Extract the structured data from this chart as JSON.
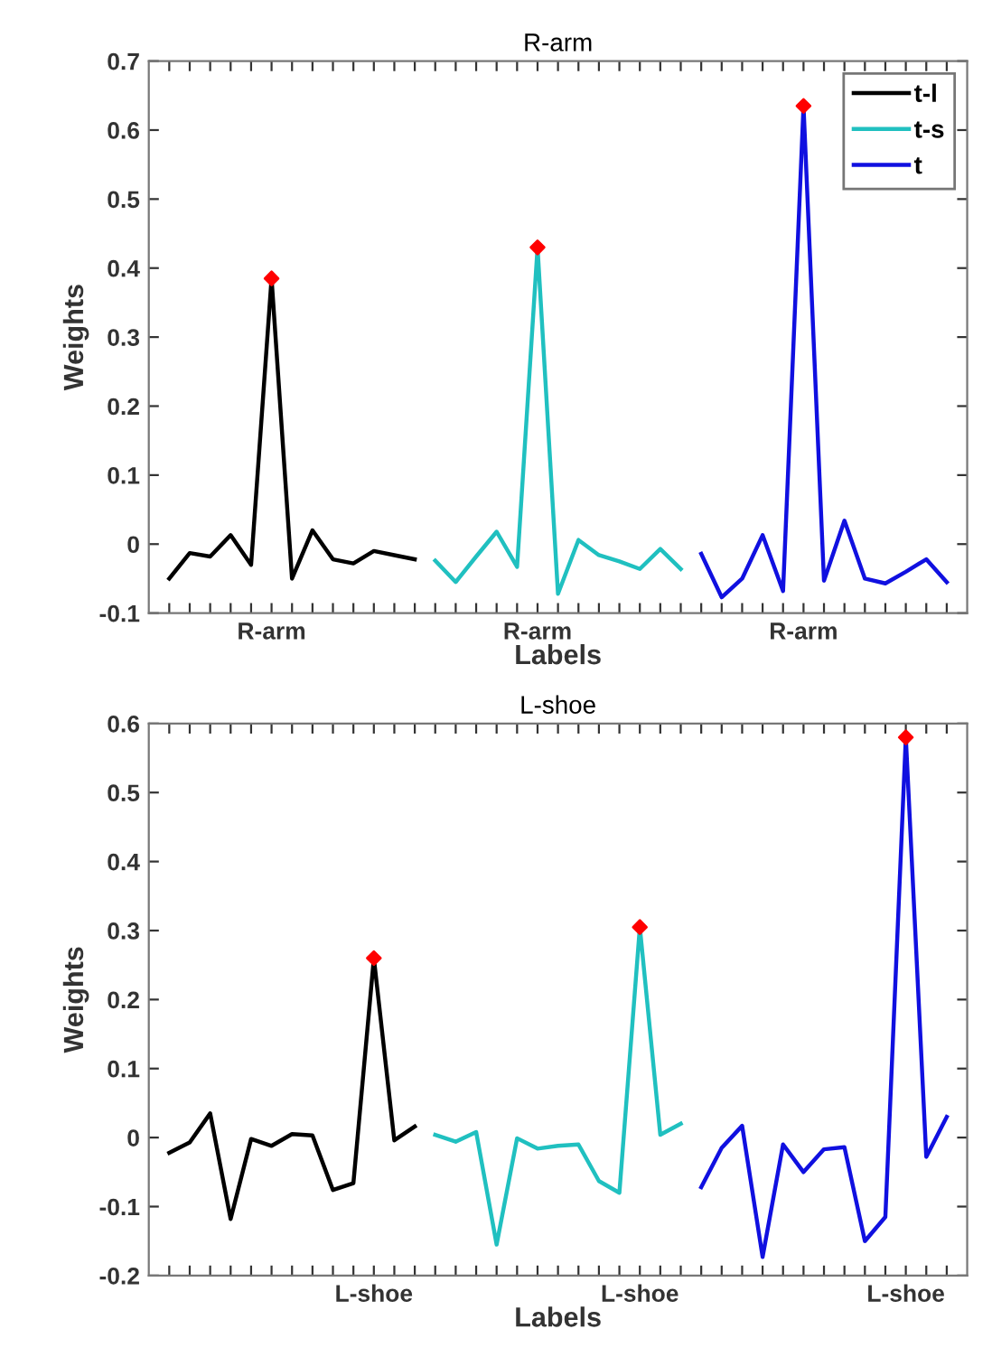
{
  "chart_data": [
    {
      "type": "line",
      "title": "R-arm",
      "xlabel": "Labels",
      "ylabel": "Weights",
      "ylim": [
        -0.1,
        0.7
      ],
      "yticks": [
        -0.1,
        0,
        0.1,
        0.2,
        0.3,
        0.4,
        0.5,
        0.6,
        0.7
      ],
      "categories": [
        null,
        null,
        null,
        null,
        null,
        "R-arm",
        null,
        null,
        null,
        null,
        null,
        null,
        null,
        null,
        null,
        null,
        null,
        null,
        "R-arm",
        null,
        null,
        null,
        null,
        null,
        null,
        null,
        null,
        null,
        null,
        null,
        null,
        "R-arm",
        null,
        null,
        null,
        null,
        null,
        null,
        null
      ],
      "legend": "top right",
      "series": [
        {
          "name": "t-l",
          "color": "#000000",
          "values": [
            -0.05,
            -0.013,
            -0.018,
            0.013,
            -0.03,
            0.385,
            -0.05,
            0.02,
            -0.022,
            -0.028,
            -0.01,
            -0.016,
            -0.022,
            null,
            null,
            null,
            null,
            null,
            null,
            null,
            null,
            null,
            null,
            null,
            null,
            null,
            null,
            null,
            null,
            null,
            null,
            null,
            null,
            null,
            null,
            null,
            null,
            null,
            null
          ]
        },
        {
          "name": "t-s",
          "color": "#20c0c0",
          "values": [
            null,
            null,
            null,
            null,
            null,
            null,
            null,
            null,
            null,
            null,
            null,
            null,
            null,
            -0.024,
            -0.055,
            -0.018,
            0.018,
            -0.033,
            0.43,
            -0.072,
            0.006,
            -0.016,
            -0.025,
            -0.036,
            -0.007,
            -0.036,
            null,
            null,
            null,
            null,
            null,
            null,
            null,
            null,
            null,
            null,
            null,
            null,
            null
          ]
        },
        {
          "name": "t",
          "color": "#1010e0",
          "values": [
            null,
            null,
            null,
            null,
            null,
            null,
            null,
            null,
            null,
            null,
            null,
            null,
            null,
            null,
            null,
            null,
            null,
            null,
            null,
            null,
            null,
            null,
            null,
            null,
            null,
            null,
            -0.014,
            -0.077,
            -0.05,
            0.013,
            -0.068,
            0.635,
            -0.053,
            0.034,
            -0.05,
            -0.057,
            -0.04,
            -0.022,
            -0.055
          ]
        },
        {
          "type": "scatter",
          "marker": "diamond",
          "color": "#ff0000",
          "values": [
            null,
            null,
            null,
            null,
            null,
            0.385,
            null,
            null,
            null,
            null,
            null,
            null,
            null,
            null,
            null,
            null,
            null,
            null,
            0.43,
            null,
            null,
            null,
            null,
            null,
            null,
            null,
            null,
            null,
            null,
            null,
            null,
            0.635,
            null,
            null,
            null,
            null,
            null,
            null,
            null
          ]
        }
      ]
    },
    {
      "type": "line",
      "title": "L-shoe",
      "xlabel": "Labels",
      "ylabel": "Weights",
      "ylim": [
        -0.2,
        0.6
      ],
      "yticks": [
        -0.2,
        -0.1,
        0,
        0.1,
        0.2,
        0.3,
        0.4,
        0.5,
        0.6
      ],
      "categories": [
        null,
        null,
        null,
        null,
        null,
        null,
        null,
        null,
        null,
        null,
        "L-shoe",
        null,
        null,
        null,
        null,
        null,
        null,
        null,
        null,
        null,
        null,
        null,
        null,
        "L-shoe",
        null,
        null,
        null,
        null,
        null,
        null,
        null,
        null,
        null,
        null,
        null,
        null,
        "L-shoe",
        null,
        null
      ],
      "series": [
        {
          "color": "#000000",
          "values": [
            -0.022,
            -0.007,
            0.035,
            -0.118,
            -0.002,
            -0.012,
            0.005,
            0.003,
            -0.076,
            -0.066,
            0.26,
            -0.004,
            0.016,
            null,
            null,
            null,
            null,
            null,
            null,
            null,
            null,
            null,
            null,
            null,
            null,
            null,
            null,
            null,
            null,
            null,
            null,
            null,
            null,
            null,
            null,
            null,
            null,
            null,
            null
          ]
        },
        {
          "color": "#20c0c0",
          "values": [
            null,
            null,
            null,
            null,
            null,
            null,
            null,
            null,
            null,
            null,
            null,
            null,
            null,
            0.004,
            -0.006,
            0.008,
            -0.155,
            -0.001,
            -0.016,
            -0.012,
            -0.01,
            -0.063,
            -0.08,
            0.305,
            0.004,
            0.02,
            null,
            null,
            null,
            null,
            null,
            null,
            null,
            null,
            null,
            null,
            null,
            null,
            null
          ]
        },
        {
          "color": "#1010e0",
          "values": [
            null,
            null,
            null,
            null,
            null,
            null,
            null,
            null,
            null,
            null,
            null,
            null,
            null,
            null,
            null,
            null,
            null,
            null,
            null,
            null,
            null,
            null,
            null,
            null,
            null,
            null,
            -0.072,
            -0.015,
            0.017,
            -0.173,
            -0.01,
            -0.05,
            -0.017,
            -0.014,
            -0.15,
            -0.115,
            0.58,
            -0.028,
            0.03
          ]
        },
        {
          "type": "scatter",
          "marker": "diamond",
          "color": "#ff0000",
          "values": [
            null,
            null,
            null,
            null,
            null,
            null,
            null,
            null,
            null,
            null,
            0.26,
            null,
            null,
            null,
            null,
            null,
            null,
            null,
            null,
            null,
            null,
            null,
            null,
            0.305,
            null,
            null,
            null,
            null,
            null,
            null,
            null,
            null,
            null,
            null,
            null,
            null,
            0.58,
            null,
            null
          ]
        }
      ]
    }
  ]
}
